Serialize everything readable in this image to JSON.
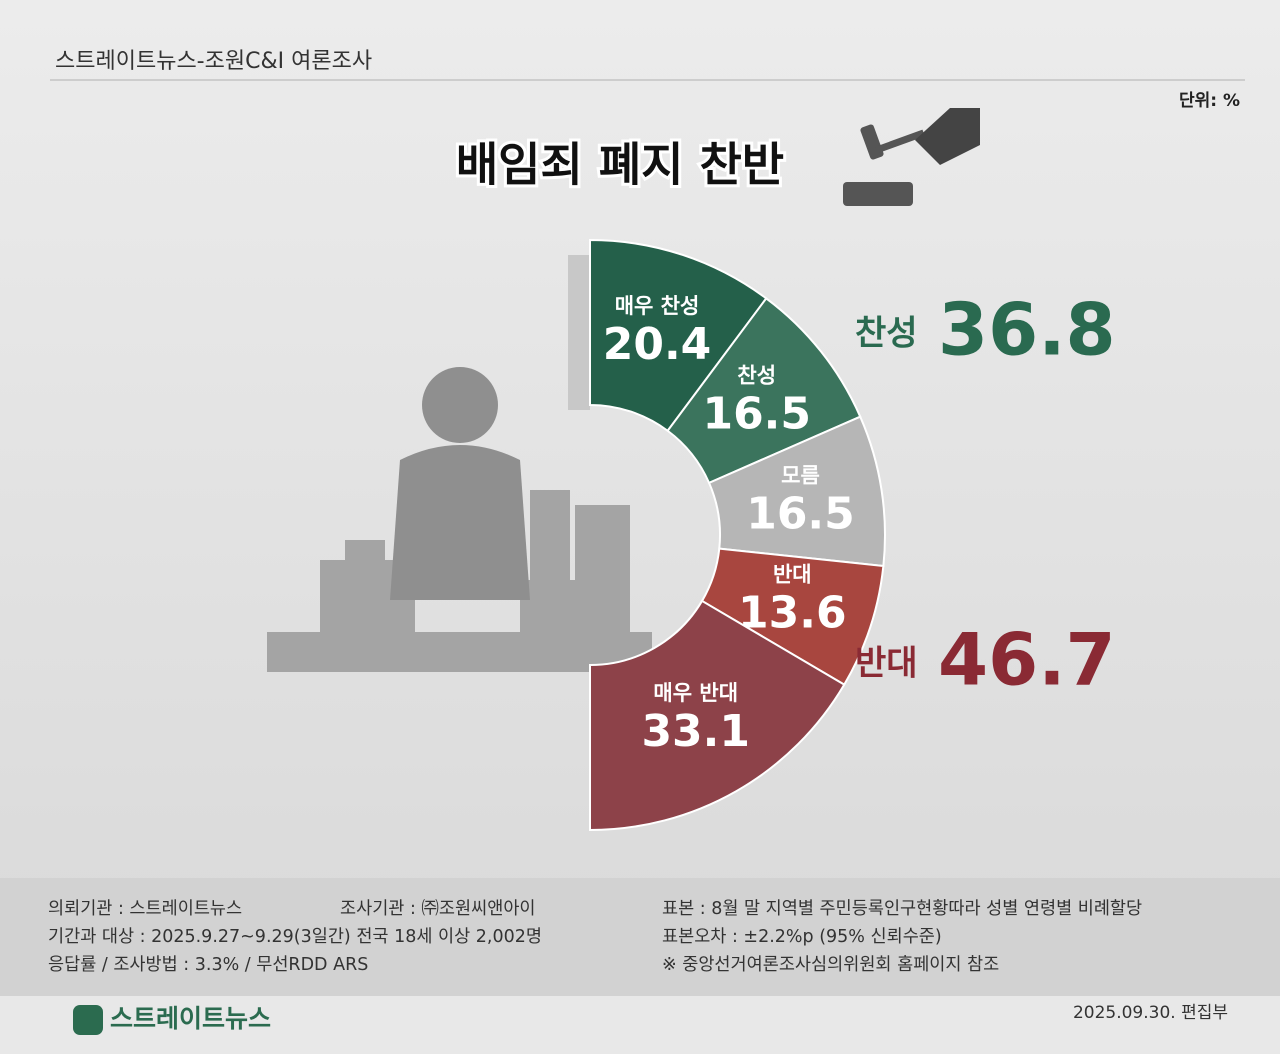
{
  "chart_data": {
    "type": "pie",
    "source": "스트레이트뉴스-조원C&I 여론조사",
    "unit": "단위: %",
    "title": "배임죄 폐지 찬반",
    "categories": [
      "매우 찬성",
      "찬성",
      "모름",
      "반대",
      "매우 반대"
    ],
    "values": [
      20.4,
      16.5,
      16.5,
      13.6,
      33.1
    ],
    "colors": [
      "#24604a",
      "#3b745d",
      "#b6b6b6",
      "#a8463f",
      "#8d4249"
    ],
    "totals": [
      {
        "label": "찬성",
        "value": 36.8,
        "color": "#2a6a50"
      },
      {
        "label": "반대",
        "value": 46.7,
        "color": "#8a2a34"
      }
    ]
  },
  "footer": {
    "lines": [
      [
        "의뢰기관 : 스트레이트뉴스",
        "조사기관 : ㈜조원씨앤아이",
        "표본 : 8월 말 지역별 주민등록인구현황따라 성별 연령별 비례할당"
      ],
      [
        "기간과 대상 : 2025.9.27~9.29(3일간)   전국 18세 이상  2,002명",
        "표본오차 : ±2.2%p (95% 신뢰수준)"
      ],
      [
        "응답률 / 조사방법 : 3.3% / 무선RDD ARS",
        "※ 중앙선거여론조사심의위원회 홈페이지 참조"
      ]
    ],
    "logo": "스트레이트뉴스",
    "date": "2025.09.30. 편집부"
  }
}
